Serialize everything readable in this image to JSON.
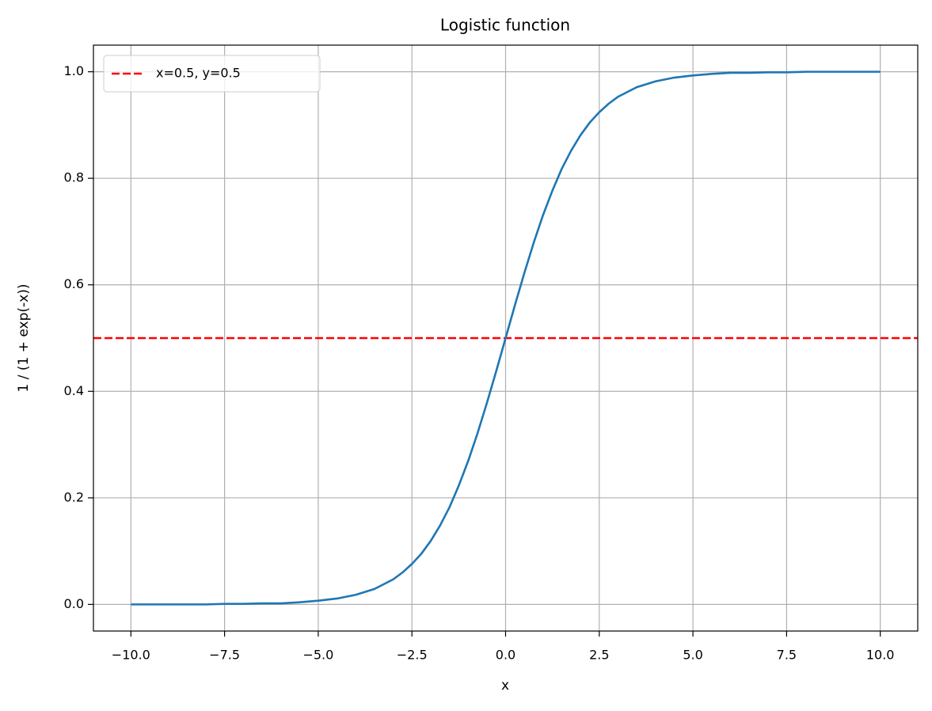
{
  "chart_data": {
    "type": "line",
    "title": "Logistic function",
    "xlabel": "x",
    "ylabel": "1 / (1 + exp(-x))",
    "x": [
      -10,
      -9.5,
      -9,
      -8.5,
      -8,
      -7.5,
      -7,
      -6.5,
      -6,
      -5.5,
      -5,
      -4.5,
      -4,
      -3.5,
      -3,
      -2.75,
      -2.5,
      -2.25,
      -2,
      -1.75,
      -1.5,
      -1.25,
      -1,
      -0.75,
      -0.5,
      -0.25,
      0,
      0.25,
      0.5,
      0.75,
      1,
      1.25,
      1.5,
      1.75,
      2,
      2.25,
      2.5,
      2.75,
      3,
      3.5,
      4,
      4.5,
      5,
      5.5,
      6,
      6.5,
      7,
      7.5,
      8,
      8.5,
      9,
      9.5,
      10
    ],
    "series": [
      {
        "color": "#1f77b4",
        "values": [
          0.0,
          0.0,
          0.0,
          0.0,
          0.0,
          0.001,
          0.001,
          0.002,
          0.002,
          0.004,
          0.007,
          0.011,
          0.018,
          0.029,
          0.047,
          0.06,
          0.076,
          0.095,
          0.119,
          0.148,
          0.182,
          0.223,
          0.269,
          0.321,
          0.378,
          0.438,
          0.5,
          0.562,
          0.622,
          0.679,
          0.731,
          0.777,
          0.818,
          0.852,
          0.881,
          0.905,
          0.924,
          0.94,
          0.953,
          0.971,
          0.982,
          0.989,
          0.993,
          0.996,
          0.998,
          0.998,
          0.999,
          0.999,
          1.0,
          1.0,
          1.0,
          1.0,
          1.0
        ]
      }
    ],
    "hlines": [
      {
        "name": "x=0.5, y=0.5",
        "y": 0.5,
        "color": "#ff0000",
        "dashed": true
      }
    ],
    "xlim": [
      -11,
      11
    ],
    "ylim": [
      -0.05,
      1.05
    ],
    "xticks": [
      {
        "value": -10,
        "label": "−10.0"
      },
      {
        "value": -7.5,
        "label": "−7.5"
      },
      {
        "value": -5,
        "label": "−5.0"
      },
      {
        "value": -2.5,
        "label": "−2.5"
      },
      {
        "value": 0,
        "label": "0.0"
      },
      {
        "value": 2.5,
        "label": "2.5"
      },
      {
        "value": 5,
        "label": "5.0"
      },
      {
        "value": 7.5,
        "label": "7.5"
      },
      {
        "value": 10,
        "label": "10.0"
      }
    ],
    "yticks": [
      {
        "value": 0,
        "label": "0.0"
      },
      0.2,
      0.4,
      0.6,
      0.8,
      {
        "value": 1,
        "label": "1.0"
      }
    ],
    "grid": true,
    "legend": "upper left"
  }
}
